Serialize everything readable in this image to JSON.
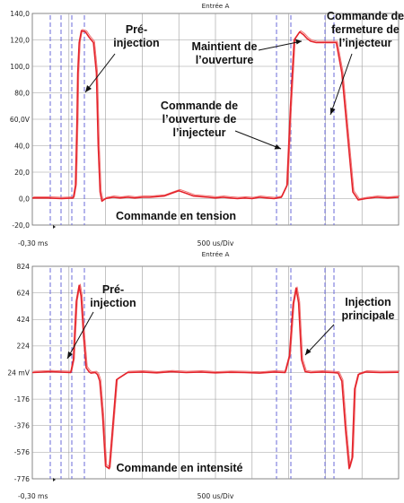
{
  "chart_data": [
    {
      "type": "line",
      "title": "Entrée A",
      "xlabel": "500 us/Div",
      "x_start_label": "-0,30 ms",
      "ylim": [
        -20,
        140
      ],
      "y_ticks": [
        "140,0",
        "120,0",
        "100,0",
        "80,0",
        "60,0V",
        "40,0",
        "20,0",
        "0,0",
        "-20,0"
      ],
      "x_divisions": 10,
      "grid": true,
      "series": [
        {
          "x": [
            0,
            0.42,
            0.8,
            1.12,
            1.18,
            1.22,
            1.24,
            1.28,
            1.34,
            1.45,
            1.55,
            1.67,
            1.75,
            1.8,
            1.85,
            1.9,
            2.0,
            2.2,
            2.4,
            2.6,
            2.8,
            3.0,
            3.2,
            3.4,
            3.6,
            3.8,
            4.0,
            4.2,
            4.4,
            4.6,
            4.8,
            5.0,
            5.2,
            5.4,
            5.6,
            5.8,
            6.0,
            6.2,
            6.4,
            6.6,
            6.8,
            6.95,
            7.05,
            7.15,
            7.3,
            7.4,
            7.5,
            7.6,
            7.75,
            7.9,
            8.1,
            8.3,
            8.45,
            8.6,
            8.75,
            8.9,
            9.1,
            9.4,
            9.7,
            10.0
          ],
          "y": [
            0.5,
            0.5,
            0.0,
            0.5,
            10,
            60,
            95,
            118,
            127,
            126,
            122,
            118,
            95,
            40,
            5,
            -2,
            0,
            1,
            0.5,
            1,
            0.5,
            1,
            1,
            1.5,
            2,
            4,
            6,
            4,
            2,
            1.5,
            1,
            0.5,
            1,
            0.5,
            0,
            0.5,
            0,
            1,
            0.5,
            0,
            1,
            10,
            70,
            120,
            126,
            124,
            121,
            119,
            118,
            118,
            118,
            118,
            95,
            50,
            5,
            -1,
            0,
            1,
            0.5,
            1
          ]
        }
      ],
      "annotations": [
        "Pré-\ninjection",
        "Maintient de\nl’ouverture",
        "Commande de\nfermeture de\nl’injecteur",
        "Commande de\nl’ouverture de\nl’injecteur",
        "Commande en tension"
      ]
    },
    {
      "type": "line",
      "title": "Entrée A",
      "xlabel": "500 us/Div",
      "x_start_label": "-0,30 ms",
      "ylim": [
        -776,
        824
      ],
      "y_ticks": [
        "824",
        "624",
        "424",
        "224",
        "24 mV",
        "-176",
        "-376",
        "-576",
        "-776"
      ],
      "x_divisions": 10,
      "grid": true,
      "series": [
        {
          "x": [
            0,
            0.5,
            1.05,
            1.12,
            1.2,
            1.28,
            1.33,
            1.4,
            1.47,
            1.55,
            1.6,
            1.72,
            1.78,
            1.84,
            1.92,
            2.0,
            2.1,
            2.3,
            2.6,
            3.0,
            3.4,
            3.8,
            4.2,
            4.6,
            5.0,
            5.4,
            5.8,
            6.2,
            6.6,
            6.9,
            7.02,
            7.12,
            7.2,
            7.27,
            7.35,
            7.45,
            7.6,
            7.9,
            8.2,
            8.35,
            8.45,
            8.55,
            8.65,
            8.73,
            8.8,
            8.9,
            9.1,
            9.5,
            10.0
          ],
          "y": [
            24,
            30,
            24,
            120,
            560,
            680,
            600,
            300,
            60,
            30,
            20,
            24,
            10,
            -40,
            -300,
            -680,
            -700,
            -30,
            24,
            28,
            22,
            30,
            24,
            28,
            22,
            26,
            24,
            20,
            28,
            24,
            150,
            540,
            660,
            550,
            120,
            30,
            24,
            28,
            24,
            20,
            -40,
            -400,
            -700,
            -620,
            -100,
            10,
            28,
            24,
            26
          ]
        }
      ],
      "annotations": [
        "Pré-\ninjection",
        "Injection\nprincipale",
        "Commande en intensité"
      ]
    }
  ]
}
